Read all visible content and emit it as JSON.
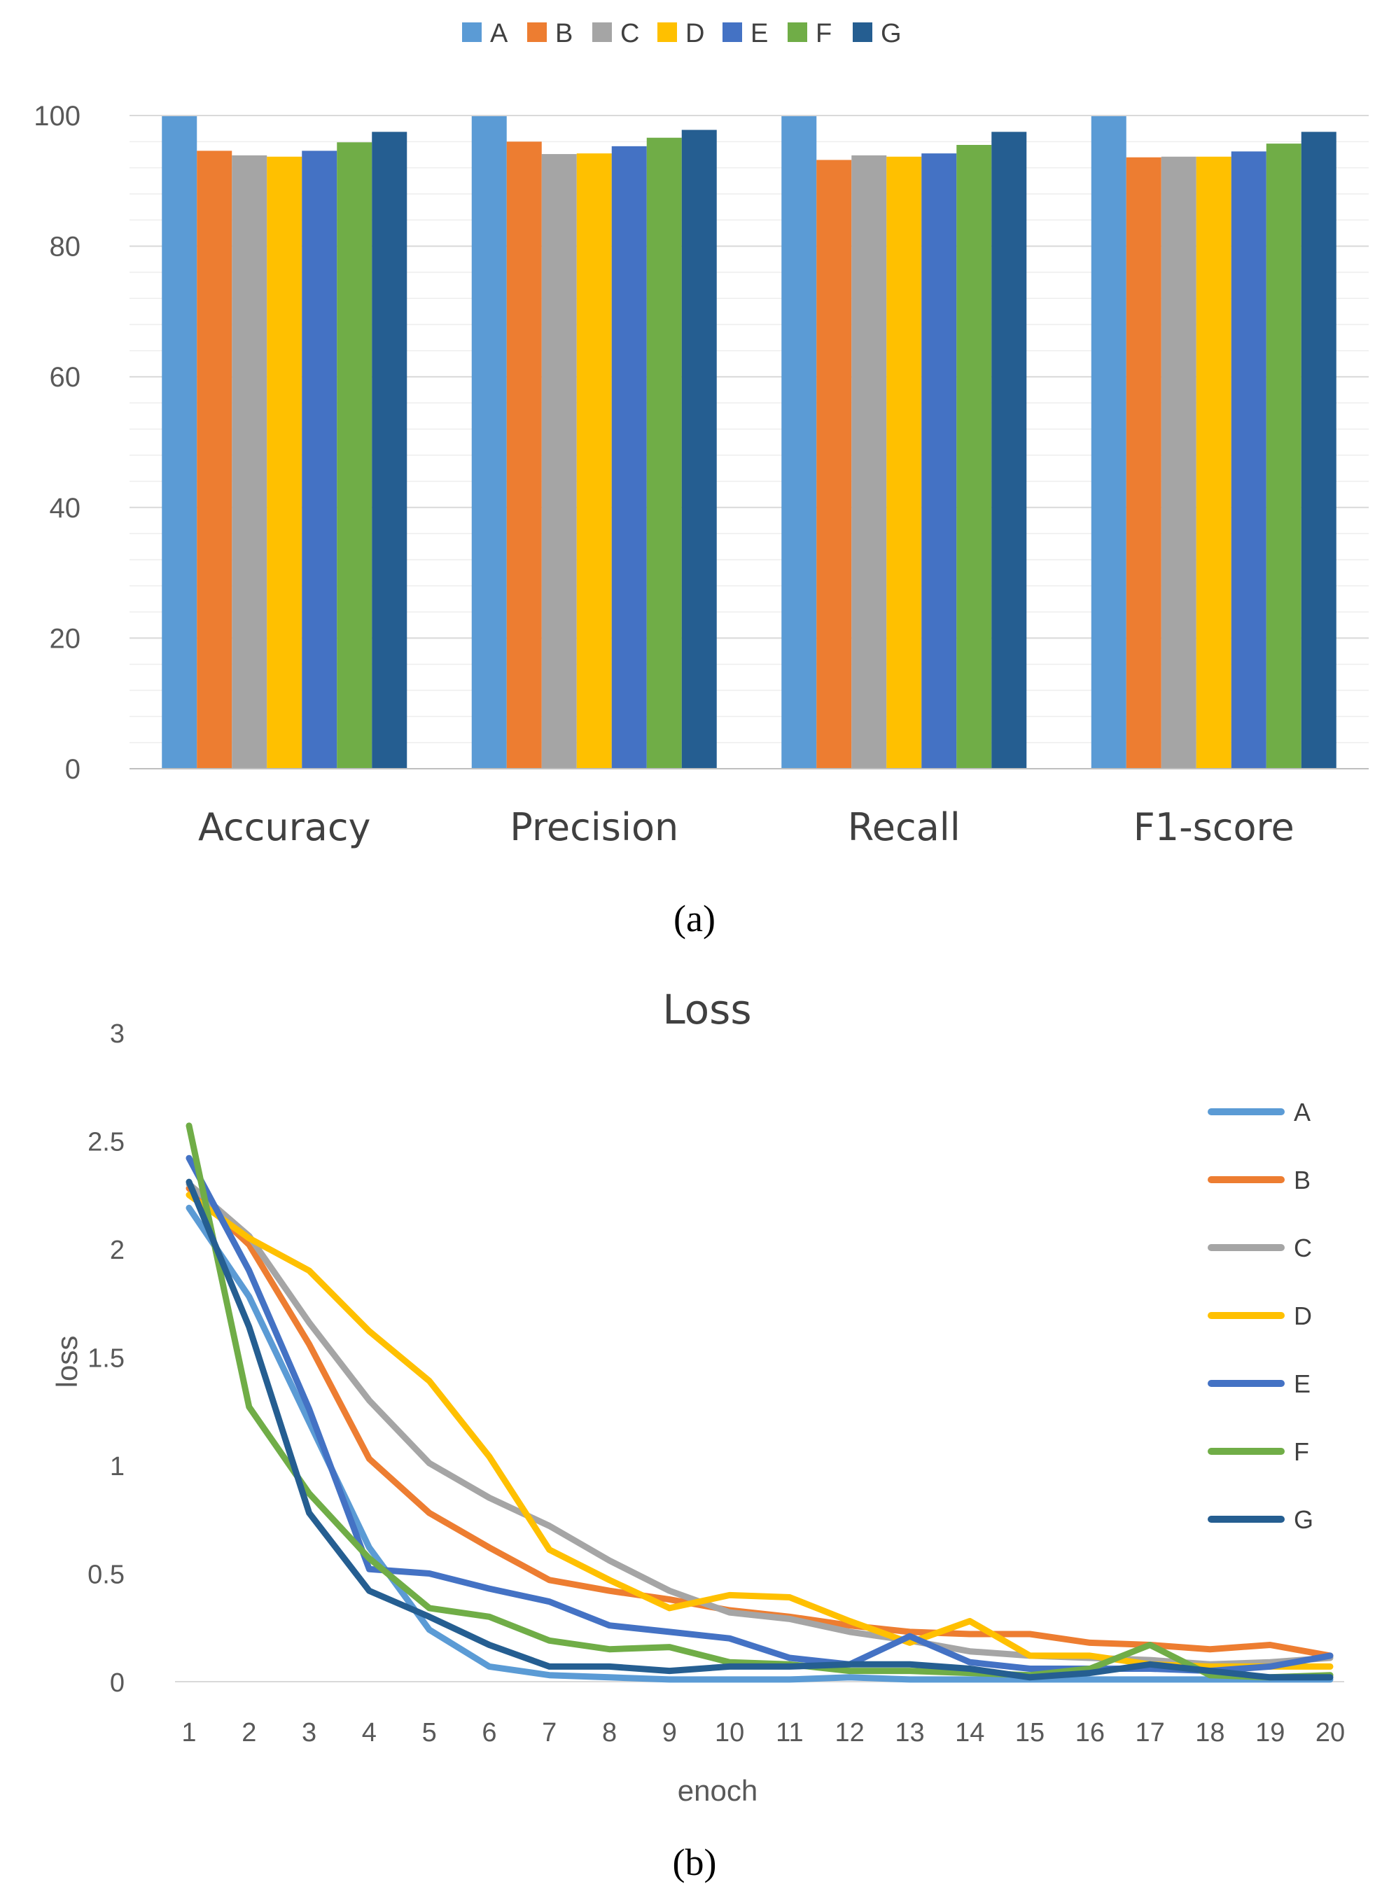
{
  "colors": {
    "A": "#5b9bd5",
    "B": "#ed7d31",
    "C": "#a5a5a5",
    "D": "#ffc000",
    "E": "#4472c4",
    "F": "#70ad47",
    "G": "#255e91",
    "grid": "#d9d9d9",
    "axis": "#bfbfbf"
  },
  "chart_data": [
    {
      "type": "bar",
      "caption": "(a)",
      "categories": [
        "Accuracy",
        "Precision",
        "Recall",
        "F1-score"
      ],
      "series": [
        {
          "name": "A",
          "values": [
            99.9,
            99.9,
            99.9,
            99.9
          ]
        },
        {
          "name": "B",
          "values": [
            94.6,
            96.0,
            93.2,
            93.6
          ]
        },
        {
          "name": "C",
          "values": [
            93.9,
            94.1,
            93.9,
            93.7
          ]
        },
        {
          "name": "D",
          "values": [
            93.7,
            94.2,
            93.7,
            93.7
          ]
        },
        {
          "name": "E",
          "values": [
            94.6,
            95.3,
            94.2,
            94.5
          ]
        },
        {
          "name": "F",
          "values": [
            95.9,
            96.6,
            95.5,
            95.7
          ]
        },
        {
          "name": "G",
          "values": [
            97.5,
            97.8,
            97.5,
            97.5
          ]
        }
      ],
      "ylim": [
        0,
        100
      ],
      "yticks": [
        0,
        20,
        40,
        60,
        80,
        100
      ],
      "legend_position": "top-center",
      "title": "",
      "xlabel": "",
      "ylabel": ""
    },
    {
      "type": "line",
      "caption": "(b)",
      "title": "Loss",
      "xlabel": "enoch",
      "ylabel": "loss",
      "x": [
        1,
        2,
        3,
        4,
        5,
        6,
        7,
        8,
        9,
        10,
        11,
        12,
        13,
        14,
        15,
        16,
        17,
        18,
        19,
        20
      ],
      "ylim": [
        0,
        3
      ],
      "yticks": [
        0,
        0.5,
        1,
        1.5,
        2,
        2.5,
        3
      ],
      "series": [
        {
          "name": "A",
          "values": [
            2.19,
            1.78,
            1.2,
            0.62,
            0.24,
            0.07,
            0.03,
            0.02,
            0.01,
            0.01,
            0.01,
            0.02,
            0.01,
            0.01,
            0.01,
            0.01,
            0.01,
            0.01,
            0.01,
            0.01
          ]
        },
        {
          "name": "B",
          "values": [
            2.28,
            2.02,
            1.56,
            1.03,
            0.78,
            0.62,
            0.47,
            0.42,
            0.38,
            0.33,
            0.3,
            0.26,
            0.23,
            0.22,
            0.22,
            0.18,
            0.17,
            0.15,
            0.17,
            0.12
          ]
        },
        {
          "name": "C",
          "values": [
            2.3,
            2.06,
            1.66,
            1.3,
            1.01,
            0.85,
            0.72,
            0.56,
            0.42,
            0.32,
            0.29,
            0.23,
            0.19,
            0.14,
            0.12,
            0.11,
            0.1,
            0.08,
            0.09,
            0.11
          ]
        },
        {
          "name": "D",
          "values": [
            2.25,
            2.05,
            1.9,
            1.62,
            1.39,
            1.04,
            0.61,
            0.47,
            0.34,
            0.4,
            0.39,
            0.28,
            0.18,
            0.28,
            0.12,
            0.12,
            0.08,
            0.07,
            0.07,
            0.07
          ]
        },
        {
          "name": "E",
          "values": [
            2.42,
            1.9,
            1.26,
            0.52,
            0.5,
            0.43,
            0.37,
            0.26,
            0.23,
            0.2,
            0.11,
            0.08,
            0.21,
            0.09,
            0.06,
            0.06,
            0.06,
            0.05,
            0.07,
            0.12
          ]
        },
        {
          "name": "F",
          "values": [
            2.57,
            1.27,
            0.87,
            0.57,
            0.34,
            0.3,
            0.19,
            0.15,
            0.16,
            0.09,
            0.08,
            0.05,
            0.05,
            0.04,
            0.03,
            0.06,
            0.17,
            0.03,
            0.02,
            0.03
          ]
        },
        {
          "name": "G",
          "values": [
            2.31,
            1.64,
            0.78,
            0.42,
            0.3,
            0.17,
            0.07,
            0.07,
            0.05,
            0.07,
            0.07,
            0.08,
            0.08,
            0.06,
            0.02,
            0.04,
            0.08,
            0.05,
            0.02,
            0.02
          ]
        }
      ],
      "legend_position": "right"
    }
  ]
}
